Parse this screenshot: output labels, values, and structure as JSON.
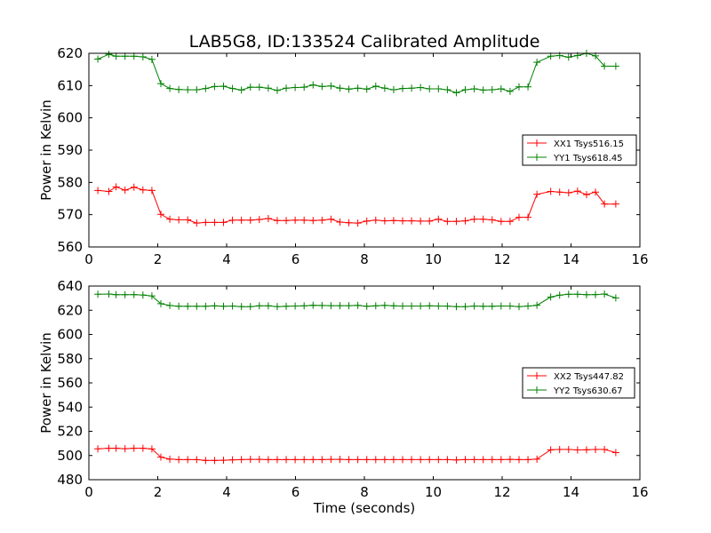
{
  "title": "LAB5G8, ID:133524 Calibrated Amplitude",
  "colors": {
    "xx": "#ff0000",
    "yy": "#008000",
    "axis": "#000000",
    "background": "#ffffff"
  },
  "chart_data": [
    {
      "type": "line",
      "title": "LAB5G8, ID:133524 Calibrated Amplitude",
      "xlabel": "",
      "ylabel": "Power in Kelvin",
      "xlim": [
        0,
        16
      ],
      "ylim": [
        560,
        620
      ],
      "xticks": [
        "0",
        "2",
        "4",
        "6",
        "8",
        "10",
        "12",
        "14",
        "16"
      ],
      "yticks": [
        "560",
        "570",
        "580",
        "590",
        "600",
        "610",
        "620"
      ],
      "grid": false,
      "legend_position": "center-right",
      "x": [
        0.26,
        0.58,
        0.79,
        1.05,
        1.31,
        1.57,
        1.83,
        2.09,
        2.35,
        2.61,
        2.87,
        3.13,
        3.39,
        3.65,
        3.91,
        4.17,
        4.43,
        4.69,
        4.95,
        5.21,
        5.47,
        5.73,
        5.99,
        6.25,
        6.51,
        6.77,
        7.03,
        7.29,
        7.55,
        7.81,
        8.07,
        8.33,
        8.59,
        8.85,
        9.11,
        9.37,
        9.63,
        9.89,
        10.15,
        10.41,
        10.67,
        10.93,
        11.19,
        11.45,
        11.71,
        11.97,
        12.23,
        12.49,
        12.75,
        13.01,
        13.41,
        13.67,
        13.93,
        14.19,
        14.45,
        14.71,
        14.97,
        15.3
      ],
      "series": [
        {
          "name": "XX1 Tsys516.15",
          "color": "#ff0000",
          "values": [
            577.5,
            577.2,
            578.6,
            577.6,
            578.5,
            577.7,
            577.5,
            570.1,
            568.6,
            568.4,
            568.4,
            567.4,
            567.6,
            567.6,
            567.6,
            568.3,
            568.3,
            568.3,
            568.5,
            568.8,
            568.2,
            568.2,
            568.3,
            568.3,
            568.2,
            568.3,
            568.6,
            567.7,
            567.5,
            567.4,
            568.0,
            568.3,
            568.1,
            568.2,
            568.1,
            568.1,
            568.0,
            568.0,
            568.6,
            567.9,
            567.9,
            568.1,
            568.6,
            568.6,
            568.4,
            567.9,
            567.9,
            569.2,
            569.2,
            576.3,
            577.2,
            577.0,
            576.8,
            577.3,
            576.2,
            577.0,
            573.3,
            573.3
          ]
        },
        {
          "name": "YY1 Tsys618.45",
          "color": "#008000",
          "values": [
            618.2,
            619.7,
            619.1,
            619.1,
            619.1,
            618.9,
            618.1,
            610.6,
            609.1,
            608.8,
            608.7,
            608.7,
            609.1,
            609.7,
            609.8,
            609.1,
            608.6,
            609.5,
            609.5,
            609.2,
            608.5,
            609.2,
            609.4,
            609.5,
            610.2,
            609.7,
            609.9,
            609.2,
            608.9,
            609.2,
            608.9,
            609.8,
            609.2,
            608.7,
            609.1,
            609.2,
            609.4,
            609.0,
            609.0,
            608.7,
            607.8,
            608.7,
            609.0,
            608.6,
            608.7,
            609.0,
            608.2,
            609.6,
            609.6,
            617.2,
            619.1,
            619.3,
            618.8,
            619.3,
            620.0,
            619.2,
            616.0,
            616.0
          ]
        }
      ]
    },
    {
      "type": "line",
      "title": "",
      "xlabel": "Time (seconds)",
      "ylabel": "Power in Kelvin",
      "xlim": [
        0,
        16
      ],
      "ylim": [
        480,
        640
      ],
      "xticks": [
        "0",
        "2",
        "4",
        "6",
        "8",
        "10",
        "12",
        "14",
        "16"
      ],
      "yticks": [
        "480",
        "500",
        "520",
        "540",
        "560",
        "580",
        "600",
        "620",
        "640"
      ],
      "grid": false,
      "legend_position": "center-right",
      "x": [
        0.26,
        0.58,
        0.79,
        1.05,
        1.31,
        1.57,
        1.83,
        2.09,
        2.35,
        2.61,
        2.87,
        3.13,
        3.39,
        3.65,
        3.91,
        4.17,
        4.43,
        4.69,
        4.95,
        5.21,
        5.47,
        5.73,
        5.99,
        6.25,
        6.51,
        6.77,
        7.03,
        7.29,
        7.55,
        7.81,
        8.07,
        8.33,
        8.59,
        8.85,
        9.11,
        9.37,
        9.63,
        9.89,
        10.15,
        10.41,
        10.67,
        10.93,
        11.19,
        11.45,
        11.71,
        11.97,
        12.23,
        12.49,
        12.75,
        13.01,
        13.41,
        13.67,
        13.93,
        14.19,
        14.45,
        14.71,
        14.97,
        15.3
      ],
      "series": [
        {
          "name": "XX2 Tsys447.82",
          "color": "#ff0000",
          "values": [
            505.5,
            506.0,
            506.0,
            505.6,
            506.0,
            506.0,
            505.4,
            498.6,
            497.0,
            496.6,
            496.6,
            496.6,
            495.9,
            495.9,
            496.1,
            496.4,
            496.6,
            496.8,
            496.8,
            496.6,
            496.6,
            496.6,
            496.6,
            496.6,
            496.6,
            496.6,
            496.8,
            496.8,
            496.6,
            496.6,
            496.6,
            496.6,
            496.6,
            496.6,
            496.6,
            496.6,
            496.6,
            496.6,
            496.6,
            496.6,
            496.3,
            496.6,
            496.6,
            496.6,
            496.6,
            496.6,
            496.8,
            496.6,
            496.6,
            497.0,
            504.7,
            505.0,
            505.0,
            504.6,
            504.7,
            505.0,
            505.0,
            502.4
          ]
        },
        {
          "name": "YY2 Tsys630.67",
          "color": "#008000",
          "values": [
            633.2,
            633.4,
            632.8,
            632.8,
            632.9,
            632.6,
            631.8,
            625.4,
            623.9,
            623.3,
            623.3,
            623.3,
            623.3,
            623.7,
            623.3,
            623.5,
            623.0,
            623.0,
            623.7,
            623.7,
            623.0,
            623.3,
            623.5,
            623.7,
            624.1,
            623.9,
            623.8,
            623.8,
            623.8,
            624.0,
            623.3,
            623.7,
            624.0,
            623.7,
            623.5,
            623.5,
            623.5,
            623.7,
            623.5,
            623.4,
            623.0,
            623.0,
            623.5,
            623.3,
            623.3,
            623.5,
            623.5,
            623.0,
            623.5,
            624.1,
            630.9,
            632.5,
            633.2,
            633.2,
            632.8,
            632.9,
            633.4,
            630.2
          ]
        }
      ]
    }
  ]
}
